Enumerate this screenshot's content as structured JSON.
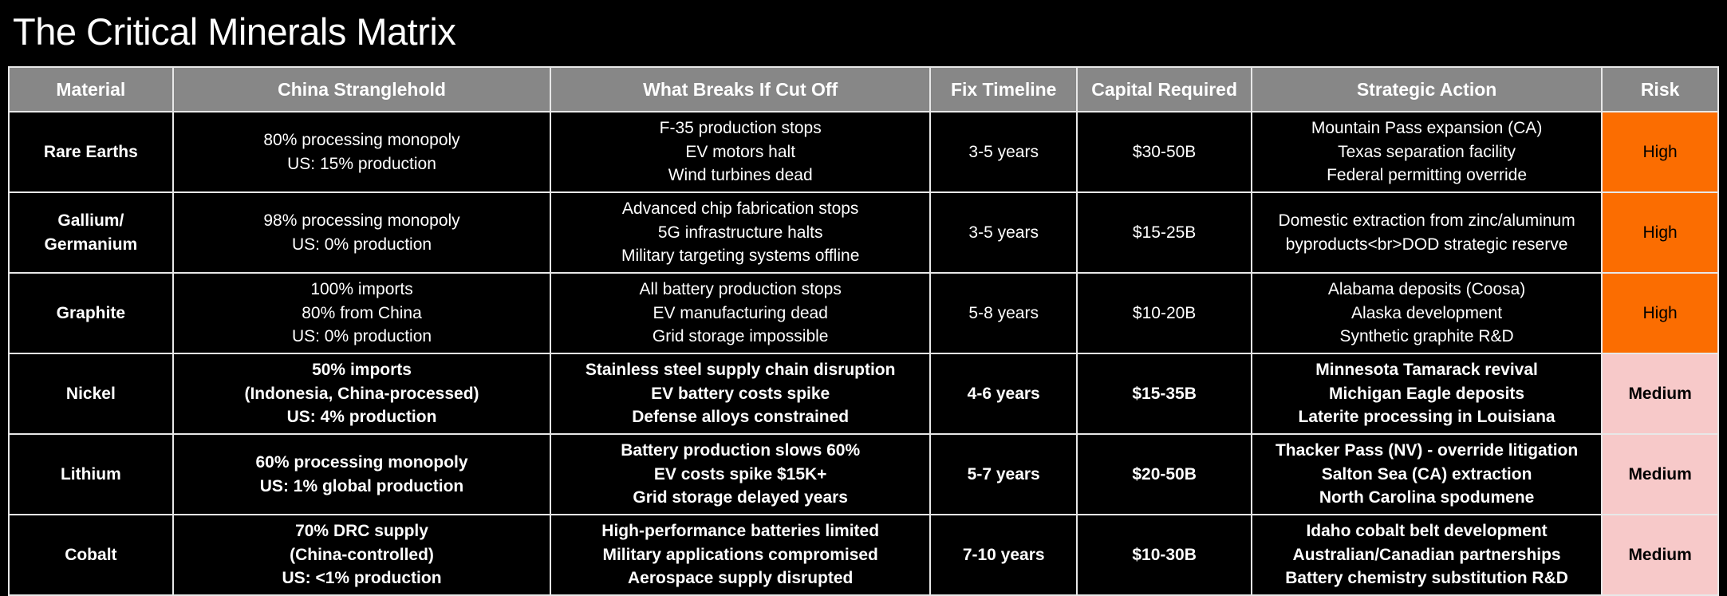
{
  "page": {
    "title": "The Critical Minerals Matrix",
    "background_color": "#000000",
    "title_color": "#ffffff"
  },
  "table": {
    "header_background": "#878787",
    "risk_colors": {
      "High": "#fb6d01",
      "Medium": "#f7c9c9"
    },
    "columns": [
      "Material",
      "China Stranglehold",
      "What Breaks If Cut Off",
      "Fix Timeline",
      "Capital Required",
      "Strategic Action",
      "Risk"
    ],
    "rows": [
      {
        "material": [
          "Rare Earths"
        ],
        "china_stranglehold": [
          "80% processing monopoly",
          "US: 15% production"
        ],
        "what_breaks": [
          "F-35 production stops",
          "EV motors halt",
          "Wind turbines dead"
        ],
        "fix_timeline": "3-5 years",
        "capital_required": "$30-50B",
        "strategic_action": [
          "Mountain Pass expansion (CA)",
          "Texas separation facility",
          "Federal permitting override"
        ],
        "risk": "High",
        "bold": false
      },
      {
        "material": [
          "Gallium/",
          "Germanium"
        ],
        "china_stranglehold": [
          "98% processing monopoly",
          "US: 0% production"
        ],
        "what_breaks": [
          "Advanced chip fabrication stops",
          "5G infrastructure halts",
          "Military targeting systems offline"
        ],
        "fix_timeline": "3-5 years",
        "capital_required": "$15-25B",
        "strategic_action": [
          "Domestic extraction from zinc/aluminum",
          "byproducts<br>DOD strategic reserve"
        ],
        "risk": "High",
        "bold": false
      },
      {
        "material": [
          "Graphite"
        ],
        "china_stranglehold": [
          "100% imports",
          "80% from China",
          "US: 0% production"
        ],
        "what_breaks": [
          "All battery production stops",
          "EV manufacturing dead",
          "Grid storage impossible"
        ],
        "fix_timeline": "5-8 years",
        "capital_required": "$10-20B",
        "strategic_action": [
          "Alabama deposits (Coosa)",
          "Alaska development",
          "Synthetic graphite R&D"
        ],
        "risk": "High",
        "bold": false
      },
      {
        "material": [
          "Nickel"
        ],
        "china_stranglehold": [
          "50% imports",
          "(Indonesia, China-processed)",
          "US: 4% production"
        ],
        "what_breaks": [
          "Stainless steel supply chain disruption",
          "EV battery costs spike",
          "Defense alloys constrained"
        ],
        "fix_timeline": "4-6 years",
        "capital_required": "$15-35B",
        "strategic_action": [
          "Minnesota Tamarack revival",
          "Michigan Eagle deposits",
          "Laterite processing in Louisiana"
        ],
        "risk": "Medium",
        "bold": true
      },
      {
        "material": [
          "Lithium"
        ],
        "china_stranglehold": [
          "60% processing monopoly",
          "US: 1% global production"
        ],
        "what_breaks": [
          "Battery production slows 60%",
          "EV costs spike $15K+",
          "Grid storage delayed years"
        ],
        "fix_timeline": "5-7 years",
        "capital_required": "$20-50B",
        "strategic_action": [
          "Thacker Pass (NV) - override litigation",
          "Salton Sea (CA) extraction",
          "North Carolina spodumene"
        ],
        "risk": "Medium",
        "bold": true
      },
      {
        "material": [
          "Cobalt"
        ],
        "china_stranglehold": [
          "70% DRC supply",
          "(China-controlled)",
          "US: <1% production"
        ],
        "what_breaks": [
          "High-performance batteries limited",
          "Military applications compromised",
          "Aerospace supply disrupted"
        ],
        "fix_timeline": "7-10 years",
        "capital_required": "$10-30B",
        "strategic_action": [
          "Idaho cobalt belt development",
          "Australian/Canadian partnerships",
          "Battery chemistry substitution R&D"
        ],
        "risk": "Medium",
        "bold": true
      }
    ]
  }
}
